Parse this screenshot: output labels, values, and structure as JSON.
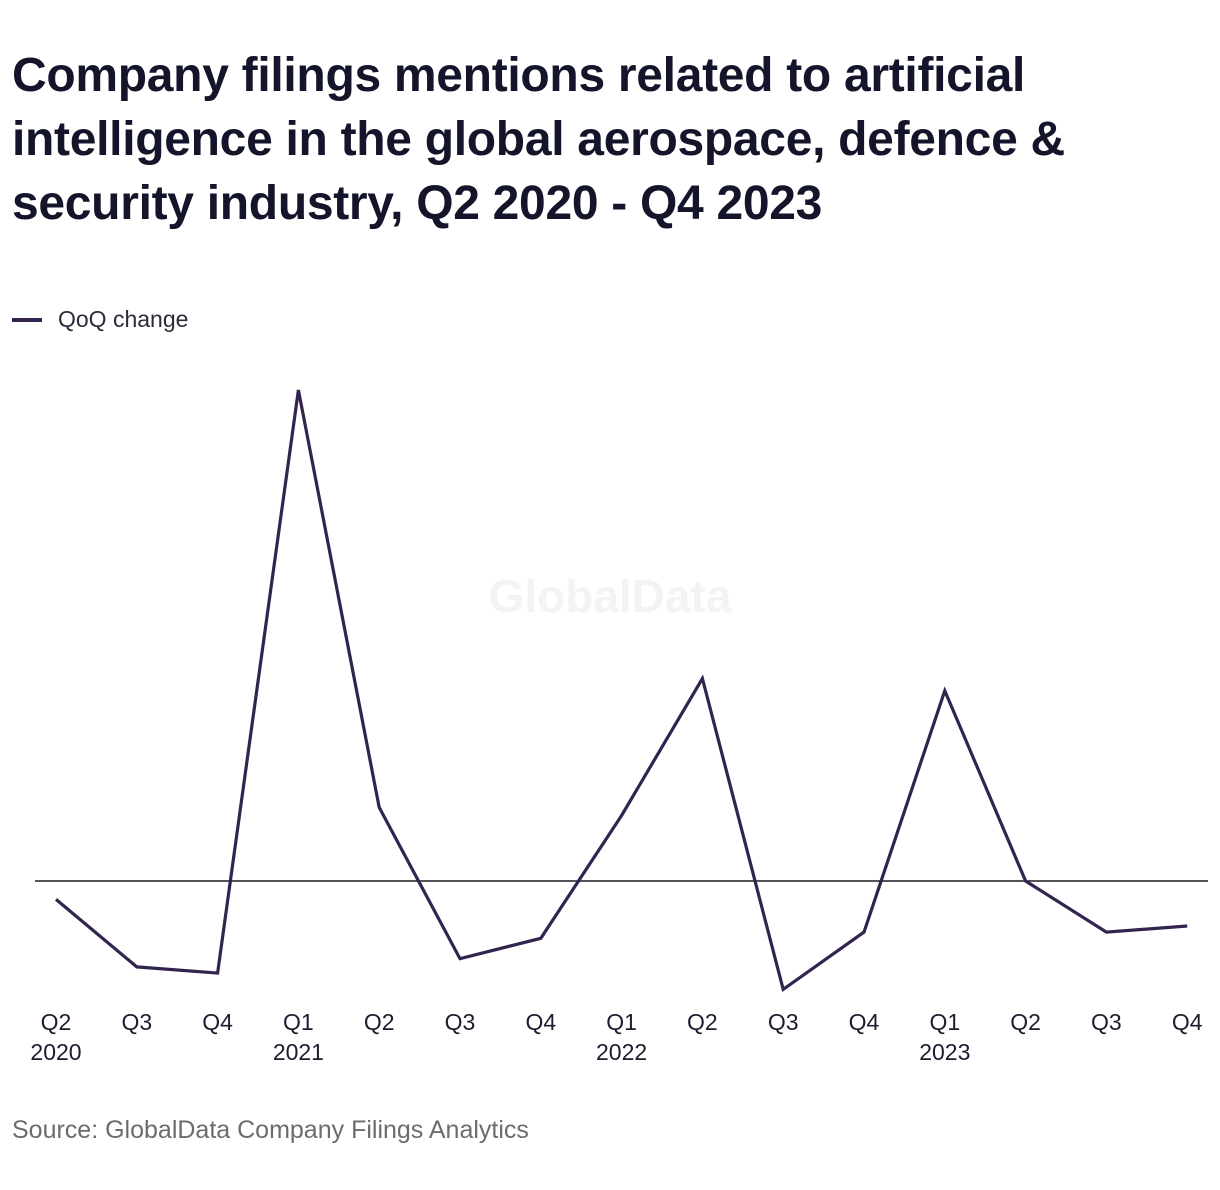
{
  "chart_data": {
    "type": "line",
    "title": "Company filings mentions related to artificial intelligence in the global aerospace, defence & security industry, Q2 2020 - Q4 2023",
    "categories": [
      {
        "quarter": "Q2",
        "year": "2020"
      },
      {
        "quarter": "Q3",
        "year": ""
      },
      {
        "quarter": "Q4",
        "year": ""
      },
      {
        "quarter": "Q1",
        "year": "2021"
      },
      {
        "quarter": "Q2",
        "year": ""
      },
      {
        "quarter": "Q3",
        "year": ""
      },
      {
        "quarter": "Q4",
        "year": ""
      },
      {
        "quarter": "Q1",
        "year": "2022"
      },
      {
        "quarter": "Q2",
        "year": ""
      },
      {
        "quarter": "Q3",
        "year": ""
      },
      {
        "quarter": "Q4",
        "year": ""
      },
      {
        "quarter": "Q1",
        "year": "2023"
      },
      {
        "quarter": "Q2",
        "year": ""
      },
      {
        "quarter": "Q3",
        "year": ""
      },
      {
        "quarter": "Q4",
        "year": ""
      }
    ],
    "series": [
      {
        "name": "QoQ change",
        "color": "#33234f",
        "values": [
          -9,
          -42,
          -45,
          240,
          36,
          -38,
          -28,
          32,
          99,
          -53,
          -25,
          93,
          0,
          -25,
          -22
        ]
      }
    ],
    "zero_line": true,
    "grid": false,
    "legend_position": "top-left",
    "ylim": [
      -60,
      260
    ],
    "xlabel": "",
    "ylabel": ""
  },
  "watermark": "GlobalData",
  "source": "Source: GlobalData Company Filings Analytics",
  "colors": {
    "series": "#33234f",
    "zero_line": "#1b1b24",
    "title": "#14152a",
    "source": "#6b6b70",
    "watermark": "#f3f3f5"
  }
}
